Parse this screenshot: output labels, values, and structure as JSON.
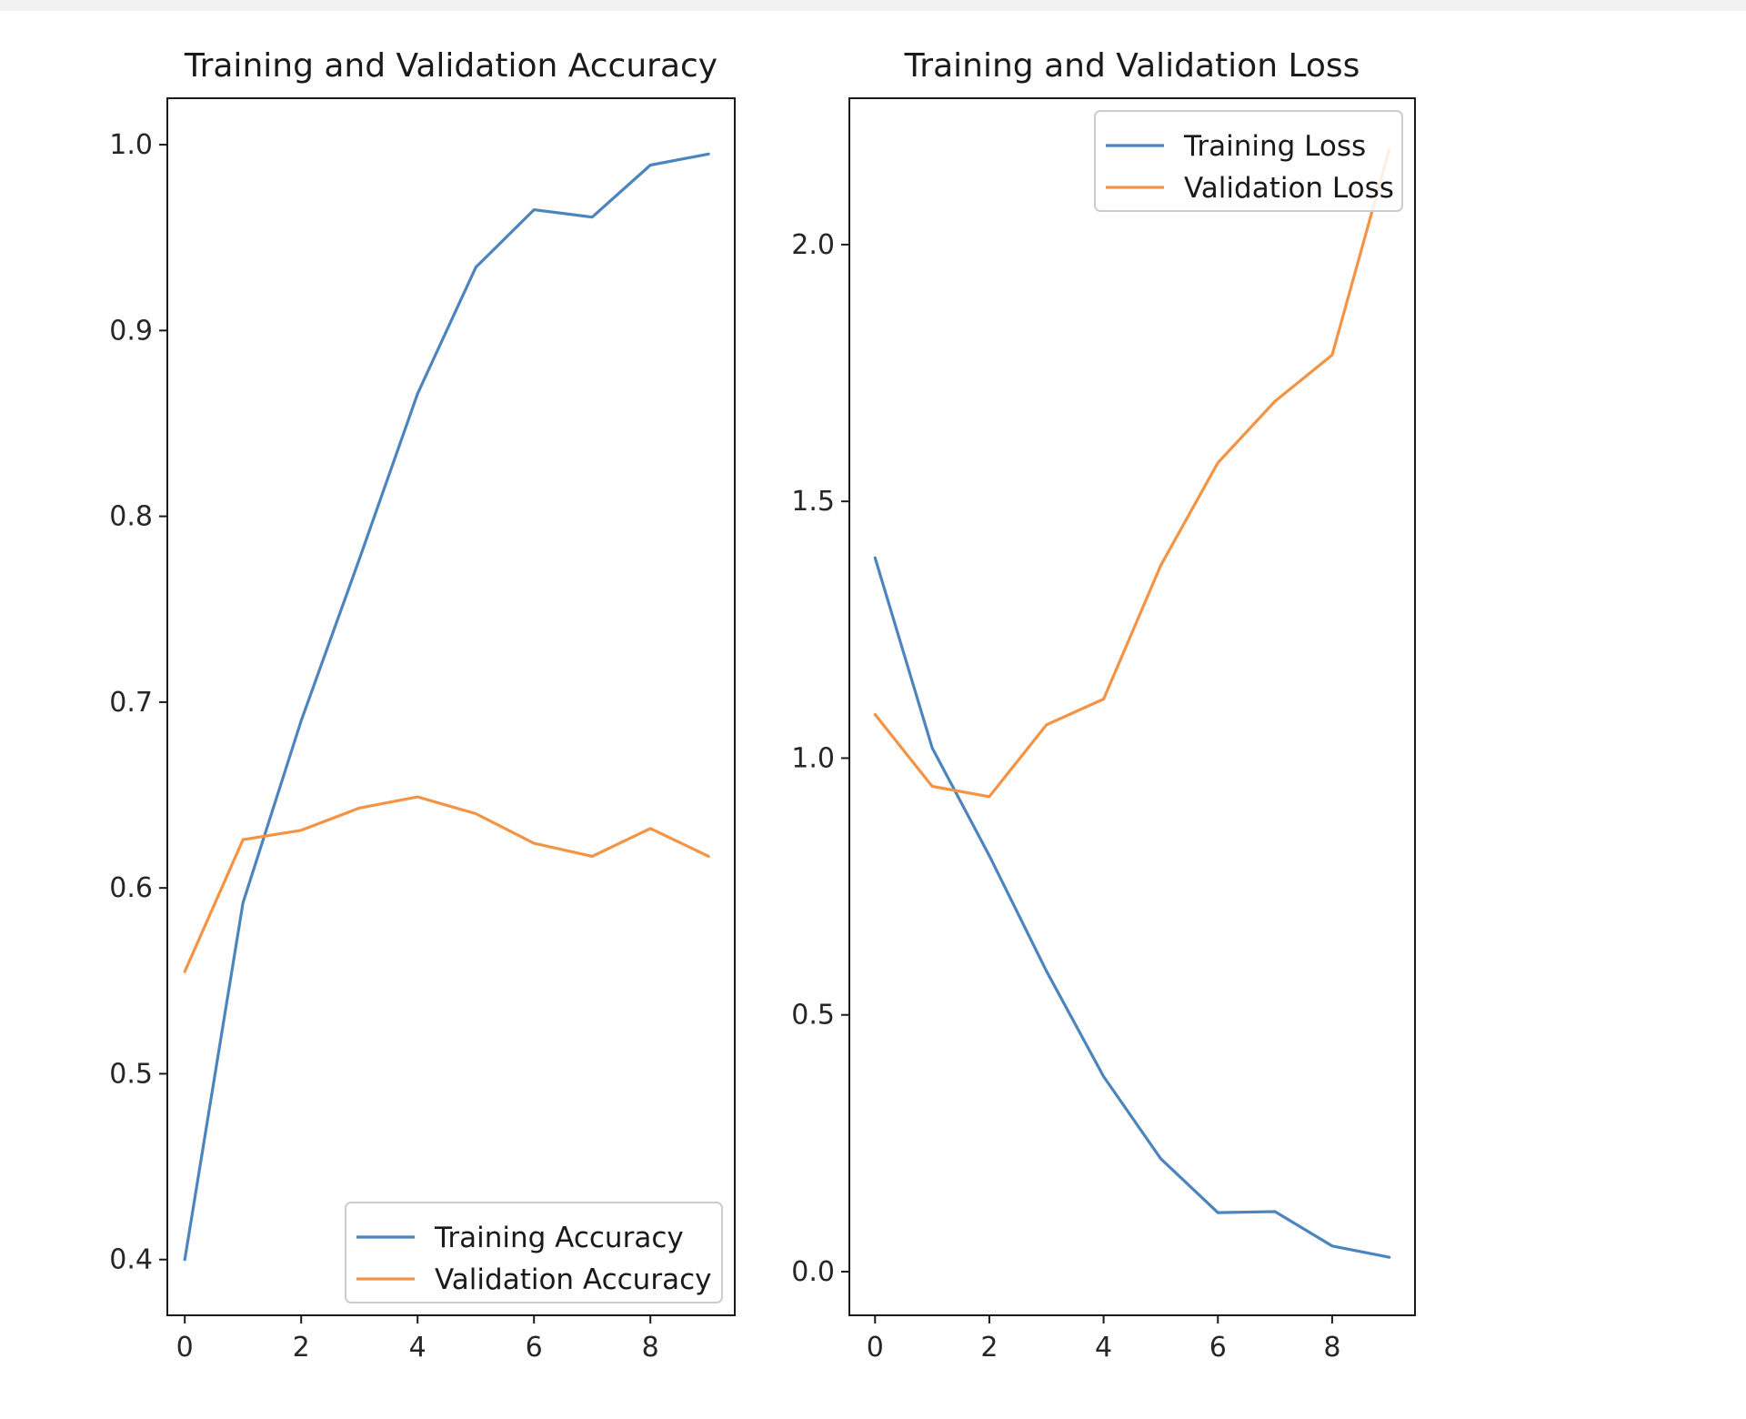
{
  "colors": {
    "training": "#4c84be",
    "validation": "#f39445",
    "axes": "#1a1a1a",
    "legend_border": "#cccccc"
  },
  "chart_data": [
    {
      "type": "line",
      "title": "Training and Validation Accuracy",
      "xlabel": "",
      "ylabel": "",
      "x": [
        0,
        1,
        2,
        3,
        4,
        5,
        6,
        7,
        8,
        9
      ],
      "xlim": [
        -0.3,
        9.45
      ],
      "ylim": [
        0.37,
        1.025
      ],
      "xticks": [
        0,
        2,
        4,
        6,
        8
      ],
      "yticks": [
        0.4,
        0.5,
        0.6,
        0.7,
        0.8,
        0.9,
        1.0
      ],
      "ytick_labels": [
        "0.4",
        "0.5",
        "0.6",
        "0.7",
        "0.8",
        "0.9",
        "1.0"
      ],
      "grid": false,
      "legend_position": "lower-right",
      "series": [
        {
          "name": "Training Accuracy",
          "color_key": "training",
          "values": [
            0.4,
            0.592,
            0.69,
            0.777,
            0.866,
            0.934,
            0.965,
            0.961,
            0.989,
            0.995
          ]
        },
        {
          "name": "Validation Accuracy",
          "color_key": "validation",
          "values": [
            0.555,
            0.626,
            0.631,
            0.643,
            0.649,
            0.64,
            0.624,
            0.617,
            0.632,
            0.617
          ]
        }
      ]
    },
    {
      "type": "line",
      "title": "Training and Validation Loss",
      "xlabel": "",
      "ylabel": "",
      "x": [
        0,
        1,
        2,
        3,
        4,
        5,
        6,
        7,
        8,
        9
      ],
      "xlim": [
        -0.45,
        9.45
      ],
      "ylim": [
        -0.085,
        2.285
      ],
      "xticks": [
        0,
        2,
        4,
        6,
        8
      ],
      "yticks": [
        0.0,
        0.5,
        1.0,
        1.5,
        2.0
      ],
      "ytick_labels": [
        "0.0",
        "0.5",
        "1.0",
        "1.5",
        "2.0"
      ],
      "grid": false,
      "legend_position": "upper-right",
      "series": [
        {
          "name": "Training Loss",
          "color_key": "training",
          "values": [
            1.39,
            1.02,
            0.81,
            0.585,
            0.38,
            0.22,
            0.115,
            0.117,
            0.05,
            0.028
          ]
        },
        {
          "name": "Validation Loss",
          "color_key": "validation",
          "values": [
            1.085,
            0.945,
            0.925,
            1.065,
            1.115,
            1.375,
            1.575,
            1.695,
            1.785,
            2.185
          ]
        }
      ]
    }
  ]
}
